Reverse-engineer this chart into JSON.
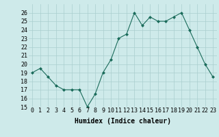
{
  "x": [
    0,
    1,
    2,
    3,
    4,
    5,
    6,
    7,
    8,
    9,
    10,
    11,
    12,
    13,
    14,
    15,
    16,
    17,
    18,
    19,
    20,
    21,
    22,
    23
  ],
  "y": [
    19,
    19.5,
    18.5,
    17.5,
    17,
    17,
    17,
    15,
    16.5,
    19,
    20.5,
    23,
    23.5,
    26,
    24.5,
    25.5,
    25,
    25,
    25.5,
    26,
    24,
    22,
    20,
    18.5
  ],
  "xlabel": "Humidex (Indice chaleur)",
  "ylim": [
    15,
    27
  ],
  "xlim": [
    -0.5,
    23.5
  ],
  "yticks": [
    15,
    16,
    17,
    18,
    19,
    20,
    21,
    22,
    23,
    24,
    25,
    26
  ],
  "xticks": [
    0,
    1,
    2,
    3,
    4,
    5,
    6,
    7,
    8,
    9,
    10,
    11,
    12,
    13,
    14,
    15,
    16,
    17,
    18,
    19,
    20,
    21,
    22,
    23
  ],
  "line_color": "#1a6b5a",
  "marker": "D",
  "marker_size": 2,
  "bg_color": "#ceeaea",
  "grid_color": "#aacece",
  "label_fontsize": 7,
  "tick_fontsize": 6
}
